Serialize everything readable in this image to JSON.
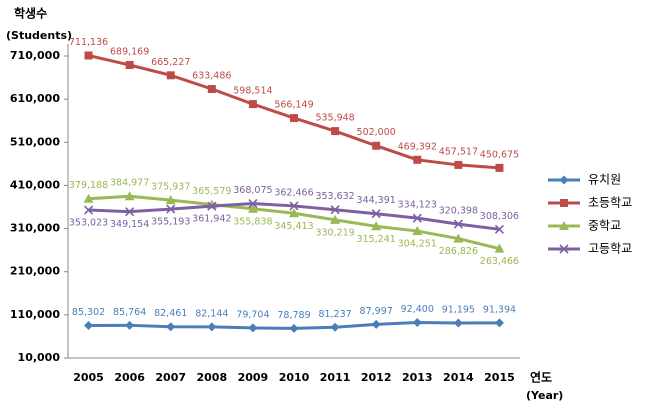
{
  "chart_data": {
    "type": "line",
    "y_label": "학생수",
    "y_label_sub": "(Students)",
    "x_label": "연도",
    "x_label_sub": "(Year)",
    "categories": [
      "2005",
      "2006",
      "2007",
      "2008",
      "2009",
      "2010",
      "2011",
      "2012",
      "2013",
      "2014",
      "2015"
    ],
    "series": [
      {
        "name": "유치원",
        "color": "#4a7ebb",
        "marker": "diamond",
        "values": [
          85302,
          85764,
          82461,
          82144,
          79704,
          78789,
          81237,
          87997,
          92400,
          91195,
          91394
        ],
        "value_labels": [
          "85,302",
          "85,764",
          "82,461",
          "82,144",
          "79,704",
          "78,789",
          "81,237",
          "87,997",
          "92,400",
          "91,195",
          "91,394"
        ]
      },
      {
        "name": "초등학교",
        "color": "#be4b48",
        "marker": "square",
        "values": [
          711136,
          689169,
          665227,
          633486,
          598514,
          566149,
          535948,
          502000,
          469392,
          457517,
          450675
        ],
        "value_labels": [
          "711,136",
          "689,169",
          "665,227",
          "633,486",
          "598,514",
          "566,149",
          "535,948",
          "502,000",
          "469,392",
          "457,517",
          "450,675"
        ]
      },
      {
        "name": "중학교",
        "color": "#98b954",
        "marker": "triangle",
        "values": [
          379188,
          384977,
          375937,
          365579,
          355838,
          345413,
          330219,
          315241,
          304251,
          286826,
          263466
        ],
        "value_labels": [
          "379,188",
          "384,977",
          "375,937",
          "365,579",
          "355,838",
          "345,413",
          "330,219",
          "315,241",
          "304,251",
          "286,826",
          "263,466"
        ]
      },
      {
        "name": "고등학교",
        "color": "#7d60a0",
        "marker": "x",
        "values": [
          353023,
          349154,
          355193,
          361942,
          368075,
          362466,
          353632,
          344391,
          334123,
          320398,
          308306
        ],
        "value_labels": [
          "353,023",
          "349,154",
          "355,193",
          "361,942",
          "368,075",
          "362,466",
          "353,632",
          "344,391",
          "334,123",
          "320,398",
          "308,306"
        ]
      }
    ],
    "ylim": [
      10000,
      710000
    ],
    "yticks": [
      {
        "value": 10000,
        "label": "10,000"
      },
      {
        "value": 110000,
        "label": "110,000"
      },
      {
        "value": 210000,
        "label": "210,000"
      },
      {
        "value": 310000,
        "label": "310,000"
      },
      {
        "value": 410000,
        "label": "410,000"
      },
      {
        "value": 510000,
        "label": "510,000"
      },
      {
        "value": 610000,
        "label": "610,000"
      },
      {
        "value": 710000,
        "label": "710,000"
      }
    ],
    "grid": false,
    "legend": "right"
  }
}
